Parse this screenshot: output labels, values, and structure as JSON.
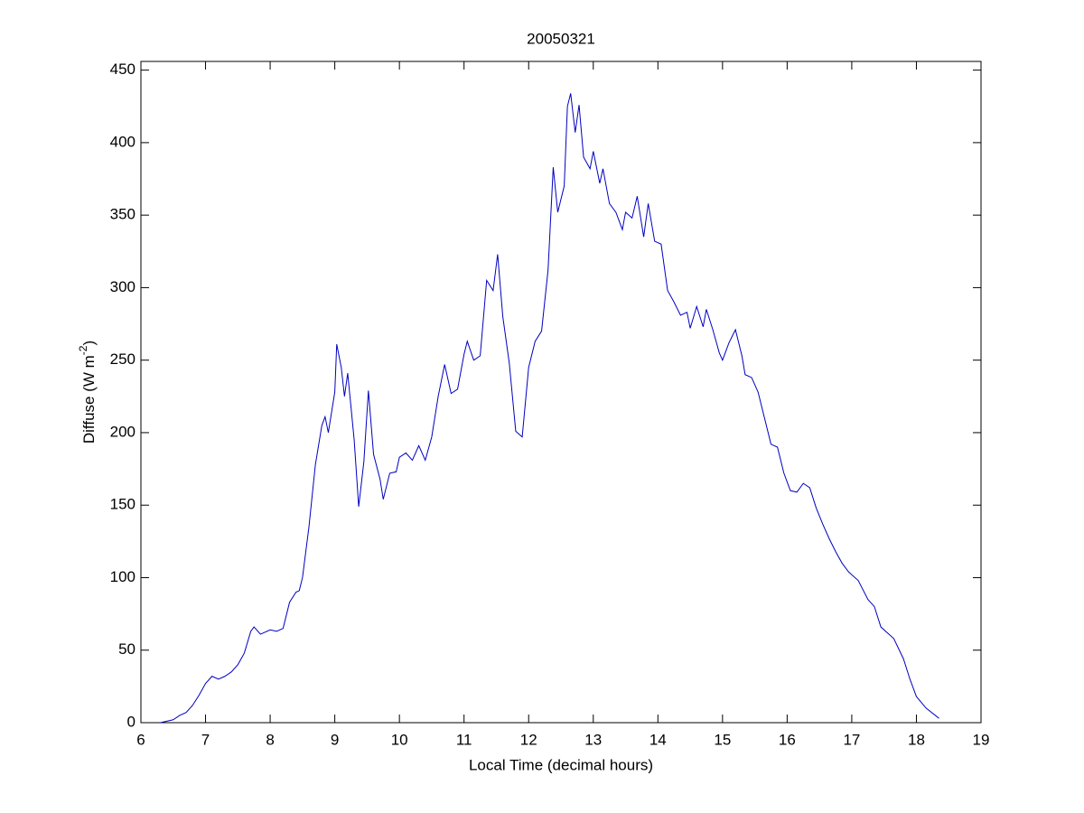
{
  "chart_data": {
    "type": "line",
    "title": "20050321",
    "xlabel": "Local Time (decimal hours)",
    "ylabel": "Diffuse (W m",
    "ylabel_superscript": "-2",
    "ylabel_suffix": ")",
    "xlim": [
      6,
      19
    ],
    "ylim": [
      0,
      456
    ],
    "xticks": [
      6,
      7,
      8,
      9,
      10,
      11,
      12,
      13,
      14,
      15,
      16,
      17,
      18,
      19
    ],
    "yticks": [
      0,
      50,
      100,
      150,
      200,
      250,
      300,
      350,
      400,
      450
    ],
    "grid": false,
    "series": [
      {
        "color": "#0000c0",
        "x": [
          6.3,
          6.5,
          6.6,
          6.7,
          6.8,
          6.9,
          7.0,
          7.1,
          7.2,
          7.3,
          7.4,
          7.5,
          7.6,
          7.7,
          7.75,
          7.85,
          8.0,
          8.1,
          8.2,
          8.3,
          8.4,
          8.45,
          8.5,
          8.6,
          8.7,
          8.8,
          8.85,
          8.9,
          9.0,
          9.03,
          9.1,
          9.15,
          9.2,
          9.3,
          9.37,
          9.45,
          9.52,
          9.6,
          9.7,
          9.75,
          9.85,
          9.95,
          10.0,
          10.1,
          10.2,
          10.3,
          10.4,
          10.5,
          10.6,
          10.7,
          10.8,
          10.9,
          11.0,
          11.05,
          11.15,
          11.25,
          11.35,
          11.45,
          11.52,
          11.6,
          11.7,
          11.8,
          11.9,
          12.0,
          12.1,
          12.2,
          12.3,
          12.38,
          12.45,
          12.55,
          12.6,
          12.65,
          12.72,
          12.78,
          12.85,
          12.95,
          13.0,
          13.1,
          13.15,
          13.25,
          13.35,
          13.45,
          13.5,
          13.6,
          13.68,
          13.78,
          13.85,
          13.95,
          14.05,
          14.15,
          14.25,
          14.35,
          14.45,
          14.5,
          14.6,
          14.7,
          14.75,
          14.85,
          14.95,
          15.0,
          15.1,
          15.2,
          15.3,
          15.35,
          15.45,
          15.55,
          15.65,
          15.75,
          15.85,
          15.95,
          16.05,
          16.15,
          16.25,
          16.35,
          16.45,
          16.55,
          16.65,
          16.75,
          16.85,
          16.95,
          17.1,
          17.25,
          17.35,
          17.45,
          17.55,
          17.65,
          17.8,
          17.9,
          18.0,
          18.15,
          18.35
        ],
        "values": [
          0,
          2,
          5,
          7,
          12,
          19,
          27,
          32,
          30,
          32,
          35,
          40,
          48,
          63,
          66,
          61,
          64,
          63,
          65,
          83,
          90,
          91,
          100,
          135,
          178,
          205,
          211,
          200,
          228,
          261,
          245,
          225,
          241,
          195,
          149,
          180,
          229,
          185,
          168,
          154,
          172,
          173,
          183,
          186,
          181,
          191,
          181,
          197,
          225,
          247,
          227,
          230,
          254,
          263,
          250,
          253,
          305,
          298,
          323,
          280,
          248,
          201,
          197,
          245,
          263,
          270,
          312,
          383,
          352,
          370,
          425,
          434,
          407,
          426,
          390,
          382,
          394,
          372,
          382,
          358,
          352,
          340,
          352,
          348,
          363,
          335,
          358,
          332,
          330,
          298,
          290,
          281,
          283,
          272,
          287,
          273,
          285,
          271,
          255,
          250,
          262,
          271,
          253,
          240,
          238,
          228,
          210,
          192,
          190,
          172,
          160,
          159,
          165,
          162,
          148,
          137,
          127,
          118,
          110,
          104,
          98,
          85,
          80,
          66,
          62,
          58,
          44,
          30,
          18,
          10,
          3
        ]
      }
    ]
  }
}
